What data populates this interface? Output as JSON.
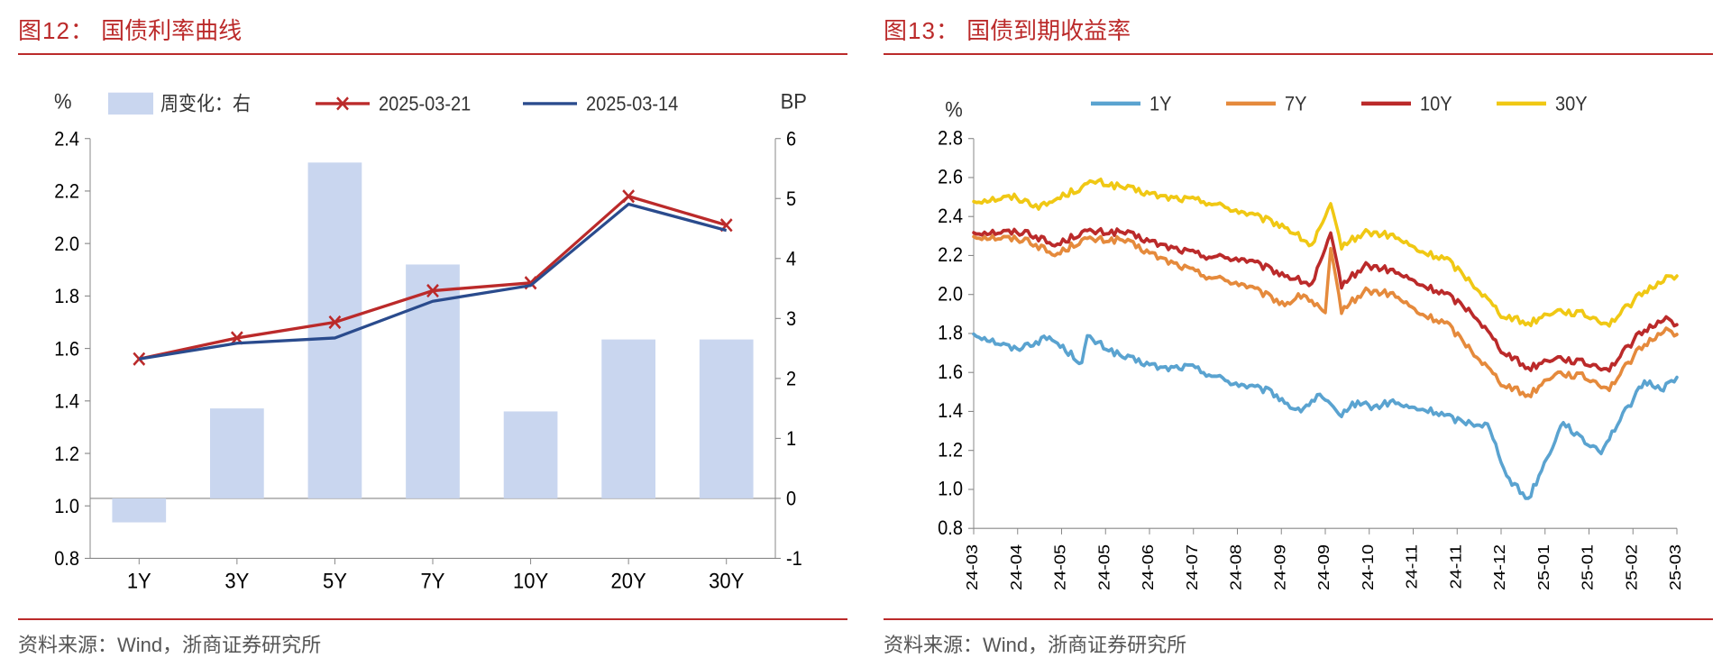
{
  "left": {
    "title_prefix": "图12：",
    "title_text": "国债利率曲线",
    "source": "资料来源：Wind，浙商证券研究所",
    "left_axis_label": "%",
    "right_axis_label": "BP",
    "categories": [
      "1Y",
      "3Y",
      "5Y",
      "7Y",
      "10Y",
      "20Y",
      "30Y"
    ],
    "y_left": {
      "min": 0.8,
      "max": 2.4,
      "step": 0.2
    },
    "y_right": {
      "min": -1,
      "max": 6,
      "step": 1
    },
    "bar": {
      "label": "周变化：右",
      "color": "#c9d6ef",
      "values": [
        -0.4,
        1.5,
        5.6,
        3.9,
        1.45,
        2.65,
        2.65
      ]
    },
    "series": [
      {
        "label": "2025-03-21",
        "color": "#bb2a2a",
        "marker": true,
        "values": [
          1.56,
          1.64,
          1.7,
          1.82,
          1.85,
          2.18,
          2.07
        ]
      },
      {
        "label": "2025-03-14",
        "color": "#2a4b8d",
        "marker": false,
        "values": [
          1.56,
          1.62,
          1.64,
          1.78,
          1.84,
          2.15,
          2.05
        ]
      }
    ]
  },
  "right": {
    "title_prefix": "图13：",
    "title_text": "国债到期收益率",
    "source": "资料来源：Wind，浙商证券研究所",
    "axis_label": "%",
    "y": {
      "min": 0.8,
      "max": 2.8,
      "step": 0.2
    },
    "x_labels": [
      "24-03",
      "24-04",
      "24-05",
      "24-05",
      "24-06",
      "24-07",
      "24-08",
      "24-09",
      "24-09",
      "24-10",
      "24-11",
      "24-11",
      "24-12",
      "25-01",
      "25-01",
      "25-02",
      "25-03"
    ],
    "n_points": 260,
    "series": [
      {
        "label": "1Y",
        "color": "#5aa3d0",
        "anchors": [
          [
            0,
            1.8
          ],
          [
            15,
            1.72
          ],
          [
            28,
            1.78
          ],
          [
            40,
            1.65
          ],
          [
            42,
            1.78
          ],
          [
            55,
            1.68
          ],
          [
            70,
            1.62
          ],
          [
            80,
            1.63
          ],
          [
            95,
            1.55
          ],
          [
            110,
            1.5
          ],
          [
            120,
            1.4
          ],
          [
            128,
            1.48
          ],
          [
            135,
            1.38
          ],
          [
            142,
            1.45
          ],
          [
            148,
            1.42
          ],
          [
            155,
            1.45
          ],
          [
            160,
            1.42
          ],
          [
            170,
            1.4
          ],
          [
            180,
            1.35
          ],
          [
            190,
            1.33
          ],
          [
            198,
            1.05
          ],
          [
            205,
            0.95
          ],
          [
            210,
            1.1
          ],
          [
            218,
            1.35
          ],
          [
            225,
            1.25
          ],
          [
            232,
            1.2
          ],
          [
            240,
            1.38
          ],
          [
            248,
            1.55
          ],
          [
            255,
            1.52
          ],
          [
            260,
            1.58
          ]
        ]
      },
      {
        "label": "7Y",
        "color": "#e58a3c",
        "anchors": [
          [
            0,
            2.3
          ],
          [
            20,
            2.28
          ],
          [
            30,
            2.2
          ],
          [
            40,
            2.28
          ],
          [
            55,
            2.28
          ],
          [
            70,
            2.18
          ],
          [
            85,
            2.1
          ],
          [
            100,
            2.05
          ],
          [
            115,
            1.95
          ],
          [
            122,
            2.0
          ],
          [
            130,
            1.9
          ],
          [
            132,
            2.22
          ],
          [
            136,
            1.92
          ],
          [
            145,
            2.02
          ],
          [
            155,
            2.0
          ],
          [
            165,
            1.9
          ],
          [
            175,
            1.85
          ],
          [
            185,
            1.7
          ],
          [
            195,
            1.55
          ],
          [
            205,
            1.48
          ],
          [
            215,
            1.6
          ],
          [
            225,
            1.58
          ],
          [
            235,
            1.52
          ],
          [
            245,
            1.7
          ],
          [
            255,
            1.82
          ],
          [
            260,
            1.8
          ]
        ]
      },
      {
        "label": "10Y",
        "color": "#bb2a2a",
        "anchors": [
          [
            0,
            2.32
          ],
          [
            20,
            2.32
          ],
          [
            30,
            2.25
          ],
          [
            40,
            2.32
          ],
          [
            55,
            2.32
          ],
          [
            70,
            2.25
          ],
          [
            85,
            2.2
          ],
          [
            100,
            2.18
          ],
          [
            115,
            2.1
          ],
          [
            125,
            2.05
          ],
          [
            132,
            2.3
          ],
          [
            136,
            2.05
          ],
          [
            145,
            2.15
          ],
          [
            155,
            2.12
          ],
          [
            165,
            2.05
          ],
          [
            175,
            2.0
          ],
          [
            185,
            1.9
          ],
          [
            195,
            1.72
          ],
          [
            205,
            1.62
          ],
          [
            215,
            1.68
          ],
          [
            225,
            1.65
          ],
          [
            235,
            1.62
          ],
          [
            245,
            1.78
          ],
          [
            255,
            1.88
          ],
          [
            260,
            1.85
          ]
        ]
      },
      {
        "label": "30Y",
        "color": "#f0c814",
        "anchors": [
          [
            0,
            2.48
          ],
          [
            15,
            2.5
          ],
          [
            25,
            2.45
          ],
          [
            35,
            2.52
          ],
          [
            45,
            2.58
          ],
          [
            55,
            2.55
          ],
          [
            70,
            2.5
          ],
          [
            85,
            2.48
          ],
          [
            100,
            2.42
          ],
          [
            115,
            2.35
          ],
          [
            125,
            2.25
          ],
          [
            132,
            2.45
          ],
          [
            136,
            2.25
          ],
          [
            145,
            2.32
          ],
          [
            155,
            2.3
          ],
          [
            165,
            2.22
          ],
          [
            175,
            2.18
          ],
          [
            185,
            2.05
          ],
          [
            195,
            1.9
          ],
          [
            205,
            1.85
          ],
          [
            215,
            1.92
          ],
          [
            225,
            1.9
          ],
          [
            235,
            1.85
          ],
          [
            245,
            1.98
          ],
          [
            255,
            2.08
          ],
          [
            260,
            2.1
          ]
        ]
      }
    ]
  }
}
